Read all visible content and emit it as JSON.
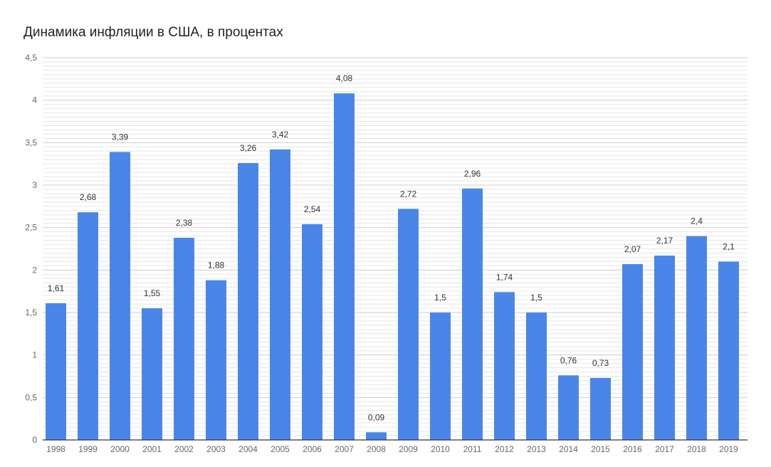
{
  "chart_data": {
    "type": "bar",
    "title": "Динамика инфляции в США, в процентах",
    "xlabel": "",
    "ylabel": "",
    "categories": [
      "1998",
      "1999",
      "2000",
      "2001",
      "2002",
      "2003",
      "2004",
      "2005",
      "2006",
      "2007",
      "2008",
      "2009",
      "2010",
      "2011",
      "2012",
      "2013",
      "2014",
      "2015",
      "2016",
      "2017",
      "2018",
      "2019"
    ],
    "values": [
      1.61,
      2.68,
      3.39,
      1.55,
      2.38,
      1.88,
      3.26,
      3.42,
      2.54,
      4.08,
      0.09,
      2.72,
      1.5,
      2.96,
      1.74,
      1.5,
      0.76,
      0.73,
      2.07,
      2.17,
      2.4,
      2.1
    ],
    "data_labels": [
      "1,61",
      "2,68",
      "3,39",
      "1,55",
      "2,38",
      "1,88",
      "3,26",
      "3,42",
      "2,54",
      "4,08",
      "0,09",
      "2,72",
      "1,5",
      "2,96",
      "1,74",
      "1,5",
      "0,76",
      "0,73",
      "2,07",
      "2,17",
      "2,4",
      "2,1"
    ],
    "ylim": [
      0,
      4.5
    ],
    "yticks": [
      "0",
      "0,5",
      "1",
      "1,5",
      "2",
      "2,5",
      "3",
      "3,5",
      "4",
      "4,5"
    ],
    "ytick_values": [
      0,
      0.5,
      1,
      1.5,
      2,
      2.5,
      3,
      3.5,
      4,
      4.5
    ],
    "minor_step": 0.05,
    "grid": true,
    "legend": "none",
    "bar_color": "#4a86e8"
  }
}
